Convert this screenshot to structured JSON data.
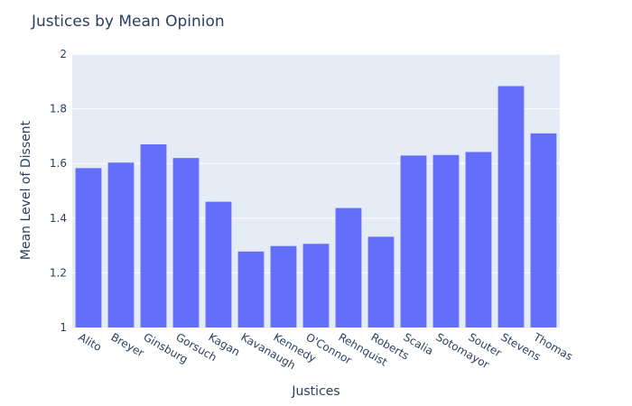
{
  "chart_data": {
    "type": "bar",
    "title": "Justices by Mean Opinion",
    "xlabel": "Justices",
    "ylabel": "Mean Level of Dissent",
    "categories": [
      "Alito",
      "Breyer",
      "Ginsburg",
      "Gorsuch",
      "Kagan",
      "Kavanaugh",
      "Kennedy",
      "O'Connor",
      "Rehnquist",
      "Roberts",
      "Scalia",
      "Sotomayor",
      "Souter",
      "Stevens",
      "Thomas"
    ],
    "values": [
      1.583,
      1.603,
      1.67,
      1.62,
      1.46,
      1.278,
      1.298,
      1.306,
      1.437,
      1.332,
      1.629,
      1.631,
      1.642,
      1.883,
      1.71
    ],
    "ylim": [
      1,
      2
    ],
    "yticks": [
      "1",
      "1.2",
      "1.4",
      "1.6",
      "1.8",
      "2"
    ],
    "grid": true,
    "colors": {
      "bar": "#636efa",
      "plot_bg": "#e5ecf6",
      "grid": "#ffffff",
      "text": "#2a3f5f"
    }
  }
}
